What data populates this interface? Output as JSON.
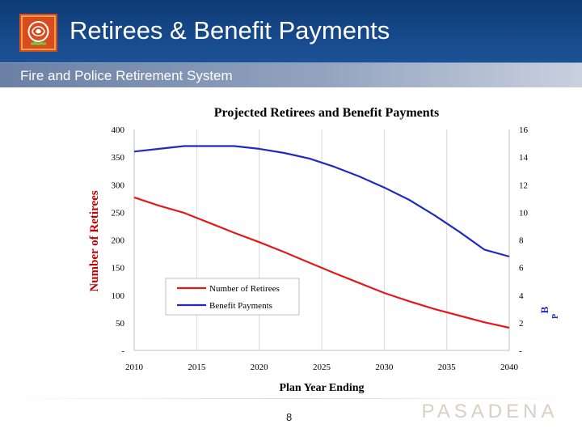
{
  "slide": {
    "title": "Retirees & Benefit Payments",
    "subtitle": "Fire and Police Retirement System",
    "page_number": "8",
    "logo_wordmark": "PASADENA"
  },
  "colors": {
    "header_bg": "#174a8c",
    "retirees_line": "#e31a1c",
    "benefit_line": "#1f2bbf",
    "grid": "#d9d9d9"
  },
  "chart_data": {
    "type": "line",
    "title": "Projected Retirees and Benefit Payments",
    "xlabel": "Plan Year Ending",
    "ylabel": "Number of Retirees",
    "y2label": "B",
    "y2label_sub": "P",
    "x": [
      2010,
      2012,
      2014,
      2016,
      2018,
      2020,
      2022,
      2024,
      2026,
      2028,
      2030,
      2032,
      2034,
      2036,
      2038,
      2040
    ],
    "xlim": [
      2010,
      2040
    ],
    "x_ticks": [
      "2010",
      "2015",
      "2020",
      "2025",
      "2030",
      "2035",
      "2040"
    ],
    "ylim": [
      0,
      400
    ],
    "y_ticks": [
      "-",
      "50",
      "100",
      "150",
      "200",
      "250",
      "300",
      "350",
      "400"
    ],
    "y2lim": [
      0,
      16
    ],
    "y2_ticks": [
      "-",
      "2",
      "4",
      "6",
      "8",
      "10",
      "12",
      "14",
      "16"
    ],
    "grid": "vertical",
    "legend_position": "lower-left",
    "series": [
      {
        "name": "Number of Retirees",
        "axis": "left",
        "values": [
          277,
          262,
          249,
          231,
          213,
          196,
          178,
          159,
          140,
          122,
          104,
          89,
          75,
          63,
          51,
          41
        ]
      },
      {
        "name": "Benefit Payments",
        "axis": "right",
        "values": [
          14.4,
          14.6,
          14.8,
          14.8,
          14.8,
          14.6,
          14.3,
          13.9,
          13.3,
          12.6,
          11.8,
          10.9,
          9.8,
          8.6,
          7.3,
          6.8
        ]
      }
    ]
  }
}
